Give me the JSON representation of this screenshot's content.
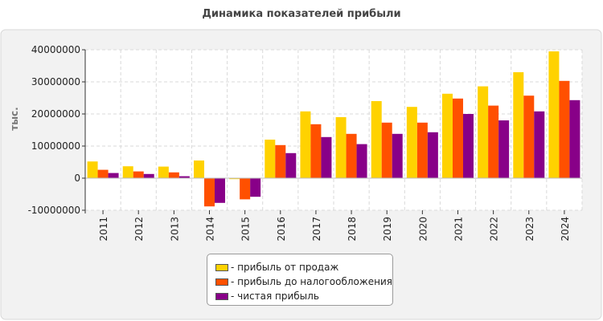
{
  "chart_data": {
    "type": "bar",
    "title": "Динамика показателей прибыли",
    "ylabel": "тыс.",
    "xlabel": "",
    "ylim": [
      -10000000,
      40000000
    ],
    "yticks": [
      -10000000,
      0,
      10000000,
      20000000,
      30000000,
      40000000
    ],
    "grid": true,
    "legend_position": "bottom",
    "categories": [
      "2011",
      "2012",
      "2013",
      "2014",
      "2015",
      "2016",
      "2017",
      "2018",
      "2019",
      "2020",
      "2021",
      "2022",
      "2023",
      "2024"
    ],
    "series": [
      {
        "name": "- прибыль от продаж",
        "color": "#FFD200",
        "values": [
          5200000,
          3700000,
          3600000,
          5500000,
          -300000,
          12000000,
          20800000,
          19000000,
          24000000,
          22200000,
          26300000,
          28600000,
          33000000,
          39500000
        ]
      },
      {
        "name": "- прибыль до налогообложения",
        "color": "#FF5000",
        "values": [
          2600000,
          2100000,
          1800000,
          -8800000,
          -6600000,
          10300000,
          16800000,
          13800000,
          17300000,
          17300000,
          24800000,
          22600000,
          25700000,
          30300000
        ]
      },
      {
        "name": "- чистая прибыль",
        "color": "#880088",
        "values": [
          1600000,
          1300000,
          600000,
          -7700000,
          -5800000,
          7800000,
          12800000,
          10600000,
          13800000,
          14300000,
          20000000,
          18000000,
          20800000,
          24300000
        ]
      }
    ]
  }
}
